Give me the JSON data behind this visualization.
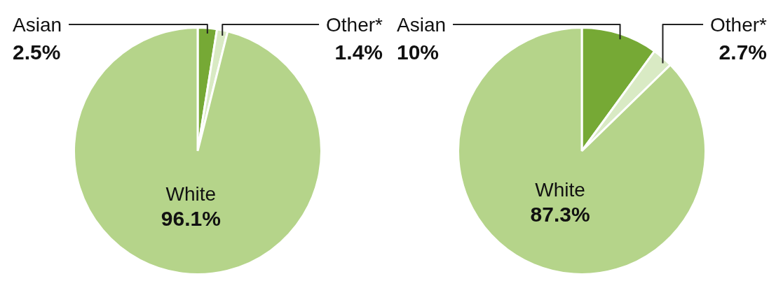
{
  "chart_data": [
    {
      "type": "pie",
      "categories": [
        "Asian",
        "Other*",
        "White"
      ],
      "values": [
        2.5,
        1.4,
        96.1
      ],
      "colors": [
        "#76a935",
        "#d9eac4",
        "#b5d48a"
      ],
      "value_labels": [
        "2.5%",
        "1.4%",
        "96.1%"
      ]
    },
    {
      "type": "pie",
      "categories": [
        "Asian",
        "Other*",
        "White"
      ],
      "values": [
        10,
        2.7,
        87.3
      ],
      "colors": [
        "#76a935",
        "#d9eac4",
        "#b5d48a"
      ],
      "value_labels": [
        "10%",
        "2.7%",
        "87.3%"
      ]
    }
  ]
}
